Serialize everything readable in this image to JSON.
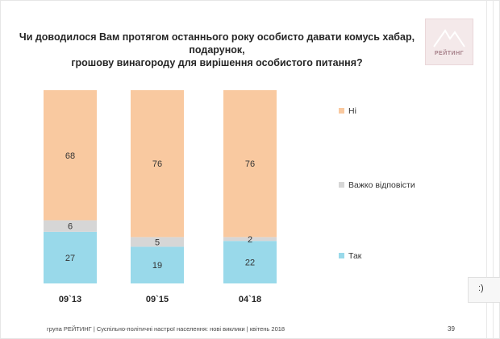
{
  "slide": {
    "title_line1": "Чи доводилося Вам протягом останнього року особисто давати комусь хабар, подарунок,",
    "title_line2": "грошову винагороду для вирішення особистого питання?",
    "logo_text": "РЕЙТИНГ",
    "footer": "група РЕЙТИНГ  |  Суспільно-політичні настрої населення: нові виклики  |  квітень 2018",
    "page_number": "39",
    "side_widget_text": ":)"
  },
  "colors": {
    "ni": "#f9c9a0",
    "vazhko": "#d6d6d6",
    "tak": "#99d9ea",
    "text": "#333333"
  },
  "chart_data": {
    "type": "bar",
    "stacked": true,
    "categories": [
      "09`13",
      "09`15",
      "04`18"
    ],
    "series": [
      {
        "name": "Так",
        "values": [
          27,
          19,
          22
        ]
      },
      {
        "name": "Важко відповісти",
        "values": [
          6,
          5,
          2
        ]
      },
      {
        "name": "Ні",
        "values": [
          68,
          76,
          76
        ]
      }
    ],
    "ylim": [
      0,
      100
    ],
    "legend": [
      "Ні",
      "Важко відповісти",
      "Так"
    ],
    "legend_position": "right",
    "grid": false
  }
}
